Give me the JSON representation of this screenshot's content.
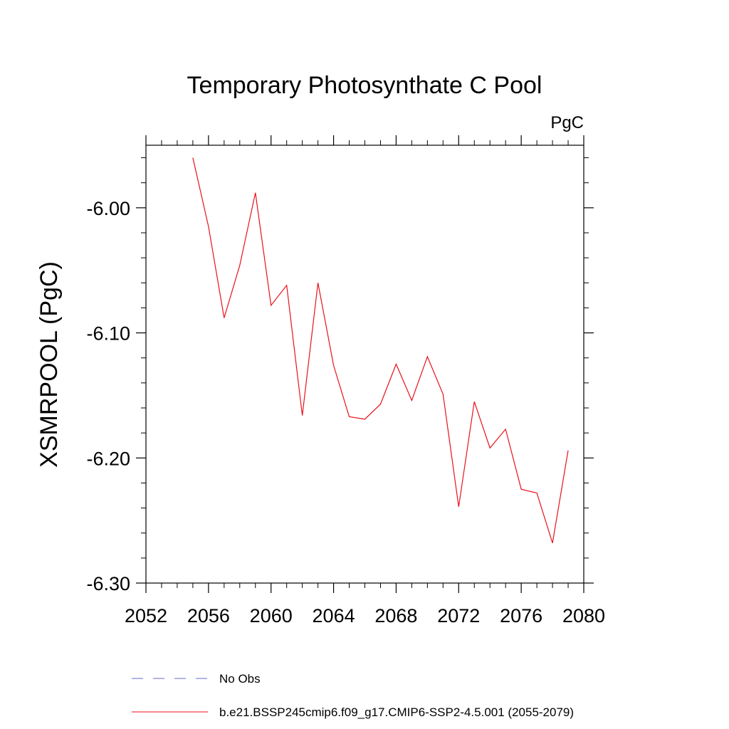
{
  "chart_data": {
    "type": "line",
    "title": "Temporary Photosynthate C Pool",
    "units": "PgC",
    "ylabel": "XSMRPOOL  (PgC)",
    "xlabel": "",
    "xlim": [
      2052,
      2080
    ],
    "ylim": [
      -6.3,
      -5.95
    ],
    "x_ticks": [
      2052,
      2056,
      2060,
      2064,
      2068,
      2072,
      2076,
      2080
    ],
    "x_tick_labels": [
      "2052",
      "2056",
      "2060",
      "2064",
      "2068",
      "2072",
      "2076",
      "2080"
    ],
    "y_ticks": [
      -6.0,
      -6.1,
      -6.2,
      -6.3
    ],
    "y_tick_labels": [
      "-6.00",
      "-6.10",
      "-6.20",
      "-6.30"
    ],
    "grid": false,
    "legend_position": "bottom",
    "series": [
      {
        "name": "b.e21.BSSP245cmip6.f09_g17.CMIP6-SSP2-4.5.001 (2055-2079)",
        "color": "#e8121b",
        "dash": "solid",
        "x": [
          2055,
          2056,
          2057,
          2058,
          2059,
          2060,
          2061,
          2062,
          2063,
          2064,
          2065,
          2066,
          2067,
          2068,
          2069,
          2070,
          2071,
          2072,
          2073,
          2074,
          2075,
          2076,
          2077,
          2078,
          2079
        ],
        "y": [
          -5.96,
          -6.015,
          -6.088,
          -6.046,
          -5.988,
          -6.078,
          -6.062,
          -6.166,
          -6.06,
          -6.126,
          -6.167,
          -6.169,
          -6.157,
          -6.125,
          -6.154,
          -6.119,
          -6.149,
          -6.239,
          -6.155,
          -6.192,
          -6.177,
          -6.225,
          -6.228,
          -6.268,
          -6.194
        ]
      }
    ],
    "legend": [
      {
        "label": "No Obs",
        "color": "#6a6ad0",
        "dash": "dashed"
      },
      {
        "label": "b.e21.BSSP245cmip6.f09_g17.CMIP6-SSP2-4.5.001 (2055-2079)",
        "color": "#e8121b",
        "dash": "solid"
      }
    ]
  }
}
